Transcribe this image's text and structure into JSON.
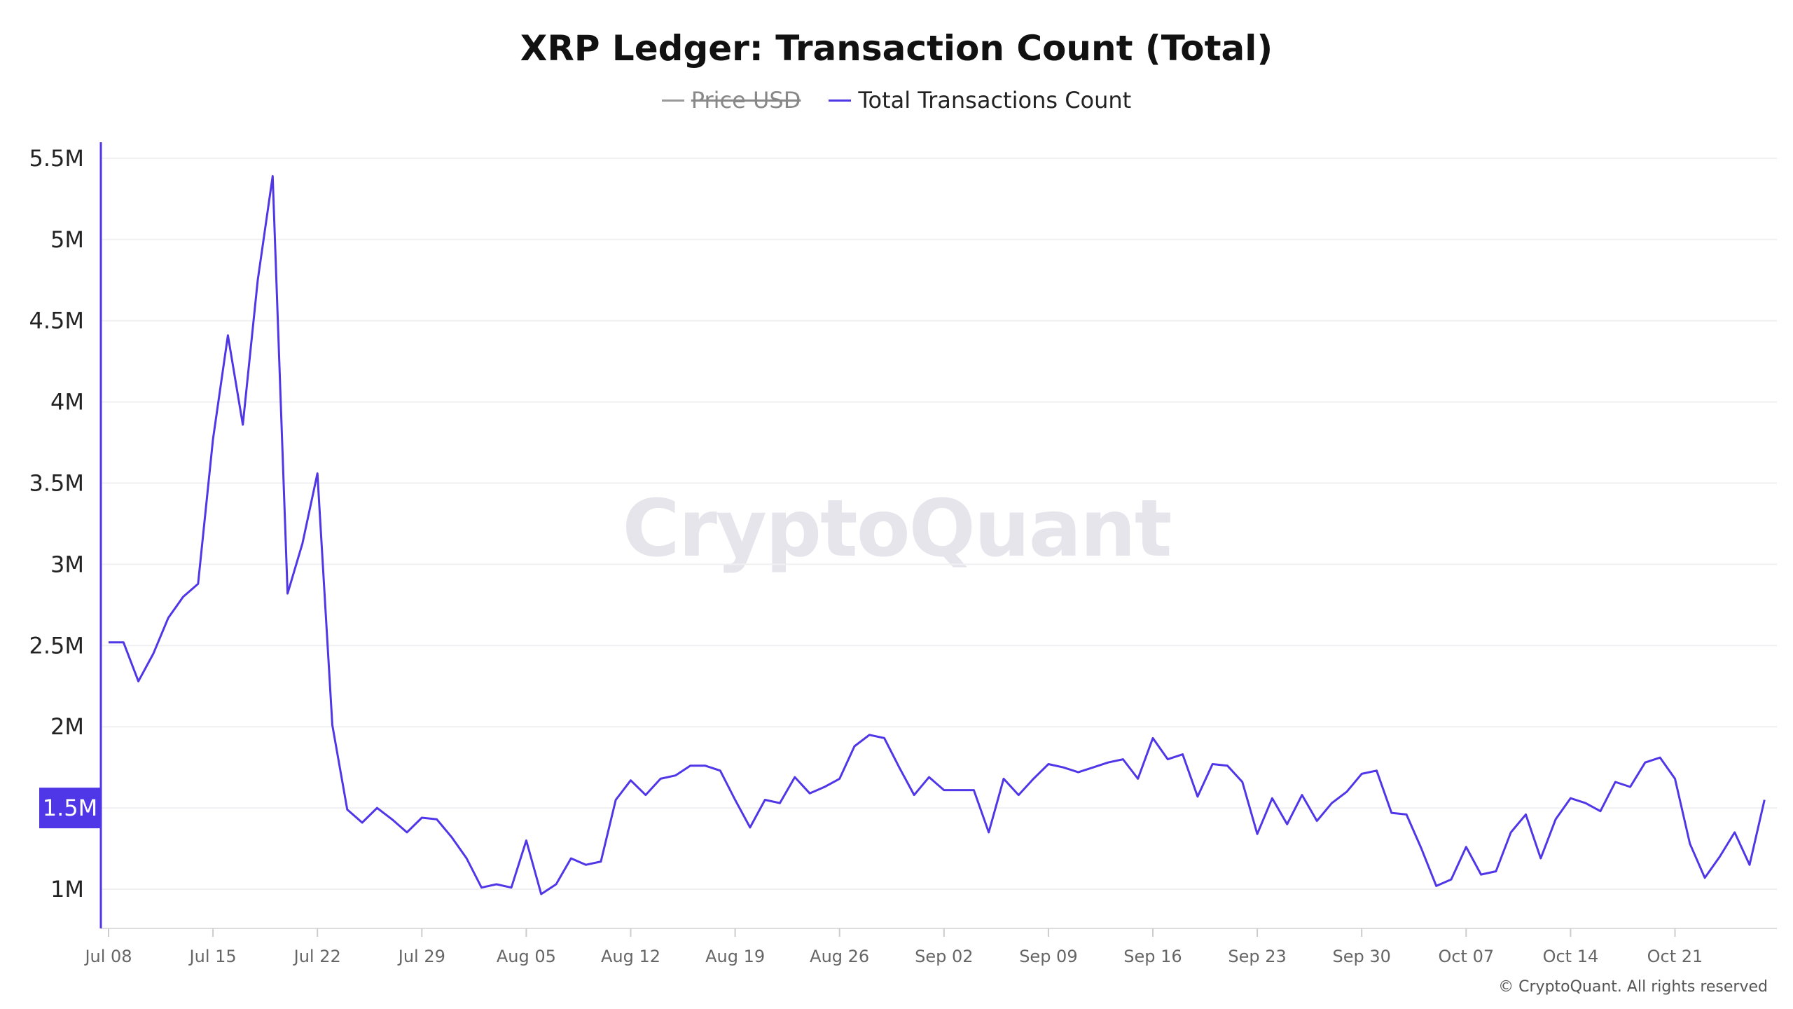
{
  "chart_data": {
    "type": "line",
    "title": "XRP Ledger: Transaction Count (Total)",
    "legend": [
      {
        "label": "Price USD",
        "color": "#9a9a9a",
        "hidden": true
      },
      {
        "label": "Total Transactions Count",
        "color": "#4f37e8",
        "hidden": false
      }
    ],
    "legend_placement": "top-center",
    "x_start": "Jul 08",
    "x_interval": "1 day",
    "x_ticks": [
      {
        "day": 0,
        "label": "Jul 08"
      },
      {
        "day": 7,
        "label": "Jul 15"
      },
      {
        "day": 14,
        "label": "Jul 22"
      },
      {
        "day": 21,
        "label": "Jul 29"
      },
      {
        "day": 28,
        "label": "Aug 05"
      },
      {
        "day": 35,
        "label": "Aug 12"
      },
      {
        "day": 42,
        "label": "Aug 19"
      },
      {
        "day": 49,
        "label": "Aug 26"
      },
      {
        "day": 56,
        "label": "Sep 02"
      },
      {
        "day": 63,
        "label": "Sep 09"
      },
      {
        "day": 70,
        "label": "Sep 16"
      },
      {
        "day": 77,
        "label": "Sep 23"
      },
      {
        "day": 84,
        "label": "Sep 30"
      },
      {
        "day": 91,
        "label": "Oct 07"
      },
      {
        "day": 98,
        "label": "Oct 14"
      },
      {
        "day": 105,
        "label": "Oct 21"
      }
    ],
    "y_ticks": [
      {
        "value": 1,
        "label": "1M"
      },
      {
        "value": 1.5,
        "label": "1.5M"
      },
      {
        "value": 2,
        "label": "2M"
      },
      {
        "value": 2.5,
        "label": "2.5M"
      },
      {
        "value": 3,
        "label": "3M"
      },
      {
        "value": 3.5,
        "label": "3.5M"
      },
      {
        "value": 4,
        "label": "4M"
      },
      {
        "value": 4.5,
        "label": "4.5M"
      },
      {
        "value": 5,
        "label": "5M"
      },
      {
        "value": 5.5,
        "label": "5.5M"
      }
    ],
    "ylabel_unit": "M",
    "ylim": [
      0.77,
      5.62
    ],
    "grid": true,
    "highlight_label": "1.5M",
    "series": [
      {
        "name": "Total Transactions Count",
        "values": [
          2.52,
          2.52,
          2.28,
          2.45,
          2.67,
          2.8,
          2.88,
          3.77,
          4.41,
          3.86,
          4.75,
          5.39,
          2.82,
          3.13,
          3.56,
          2.01,
          1.49,
          1.41,
          1.5,
          1.43,
          1.35,
          1.44,
          1.43,
          1.32,
          1.19,
          1.01,
          1.03,
          1.01,
          1.3,
          0.97,
          1.03,
          1.19,
          1.15,
          1.17,
          1.55,
          1.67,
          1.58,
          1.68,
          1.7,
          1.76,
          1.76,
          1.73,
          1.55,
          1.38,
          1.55,
          1.53,
          1.69,
          1.59,
          1.63,
          1.68,
          1.88,
          1.95,
          1.93,
          1.75,
          1.58,
          1.69,
          1.61,
          1.61,
          1.61,
          1.35,
          1.68,
          1.58,
          1.68,
          1.77,
          1.75,
          1.72,
          1.75,
          1.78,
          1.8,
          1.68,
          1.93,
          1.8,
          1.83,
          1.57,
          1.77,
          1.76,
          1.66,
          1.34,
          1.56,
          1.4,
          1.58,
          1.42,
          1.53,
          1.6,
          1.71,
          1.73,
          1.47,
          1.46,
          1.25,
          1.02,
          1.06,
          1.26,
          1.09,
          1.11,
          1.35,
          1.46,
          1.19,
          1.43,
          1.56,
          1.53,
          1.48,
          1.66,
          1.63,
          1.78,
          1.81,
          1.68,
          1.28,
          1.07,
          1.2,
          1.35,
          1.15,
          1.55
        ]
      }
    ]
  },
  "watermark": "CryptoQuant",
  "copyright": "© CryptoQuant. All rights reserved"
}
